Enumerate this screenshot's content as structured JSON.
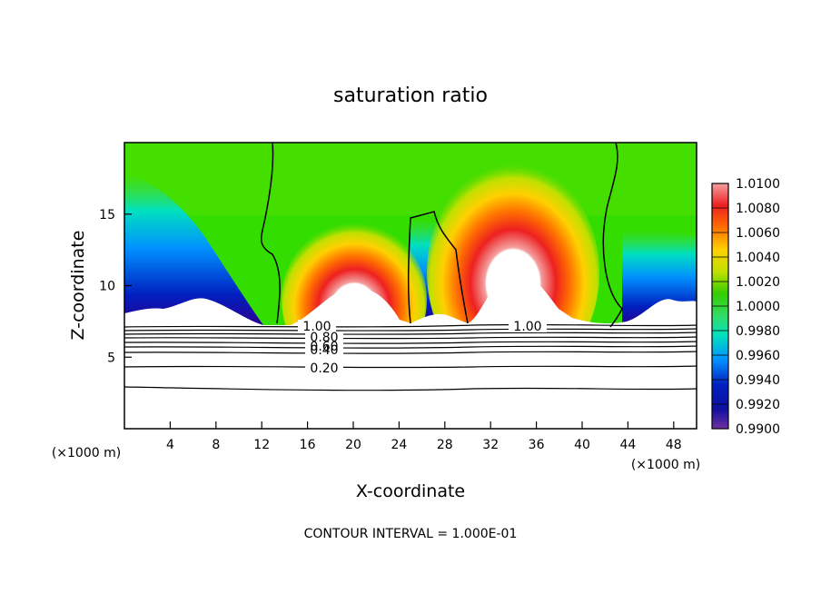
{
  "chart_data": {
    "type": "heatmap",
    "title": "saturation ratio",
    "xlabel": "X-coordinate",
    "ylabel": "Z-coordinate",
    "x_unit_left": "(×1000 m)",
    "x_unit_right": "(×1000 m)",
    "xlim": [
      0,
      50
    ],
    "ylim": [
      0,
      20
    ],
    "xticks": [
      4,
      8,
      12,
      16,
      20,
      24,
      28,
      32,
      36,
      40,
      44,
      48
    ],
    "yticks": [
      5,
      10,
      15
    ],
    "colorbar": {
      "min": 0.99,
      "max": 1.01,
      "ticks": [
        "1.0100",
        "1.0080",
        "1.0060",
        "1.0040",
        "1.0020",
        "1.0000",
        "0.9980",
        "0.9960",
        "0.9940",
        "0.9920",
        "0.9900"
      ],
      "colors": [
        "#f4a0a0",
        "#ee2020",
        "#ff7000",
        "#ffd000",
        "#c0e000",
        "#33cc00",
        "#33dd66",
        "#00e0c0",
        "#0090ff",
        "#0020c0",
        "#7030a0"
      ]
    },
    "contour_labels": [
      {
        "text": "1.00",
        "x": 15.0,
        "z": 7.3
      },
      {
        "text": "1.00",
        "x": 35.5,
        "z": 7.2
      },
      {
        "text": "0.80",
        "x": 16.2,
        "z": 6.8
      },
      {
        "text": "0.60",
        "x": 16.2,
        "z": 6.4
      },
      {
        "text": "0.40",
        "x": 16.2,
        "z": 5.7
      },
      {
        "text": "0.20",
        "x": 16.2,
        "z": 4.2
      }
    ],
    "contour_interval_text": "CONTOUR INTERVAL = 1.000E-01"
  }
}
